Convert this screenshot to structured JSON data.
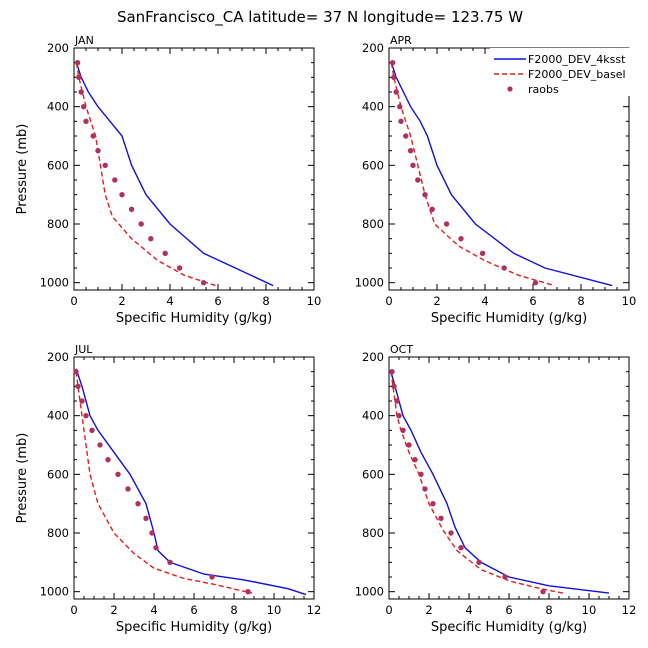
{
  "figure": {
    "title": "SanFrancisco_CA  latitude= 37 N longitude= 123.75 W"
  },
  "legend": {
    "placement": "top-right",
    "entries": [
      {
        "label": "F2000_DEV_4ksst",
        "color": "#1010e0",
        "style": "solid"
      },
      {
        "label": "F2000_DEV_basel",
        "color": "#e0201a",
        "style": "dashed"
      },
      {
        "label": "raobs",
        "color": "#b03060",
        "style": "dot"
      }
    ]
  },
  "chart_data": [
    {
      "type": "line",
      "panel": "JAN",
      "xlabel": "Specific Humidity (g/kg)",
      "ylabel": "Pressure (mb)",
      "xlim": [
        0,
        10
      ],
      "ylim": [
        1025,
        200
      ],
      "xticks": [
        0,
        2,
        4,
        6,
        8,
        10
      ],
      "yticks": [
        200,
        400,
        600,
        800,
        1000
      ],
      "series": [
        {
          "name": "F2000_DEV_4ksst",
          "points": [
            [
              0.1,
              250
            ],
            [
              0.3,
              300
            ],
            [
              0.6,
              350
            ],
            [
              1.0,
              400
            ],
            [
              1.5,
              450
            ],
            [
              2.0,
              500
            ],
            [
              2.4,
              600
            ],
            [
              3.0,
              700
            ],
            [
              4.0,
              800
            ],
            [
              5.4,
              900
            ],
            [
              8.3,
              1010
            ]
          ]
        },
        {
          "name": "F2000_DEV_basel",
          "points": [
            [
              0.1,
              250
            ],
            [
              0.2,
              300
            ],
            [
              0.35,
              350
            ],
            [
              0.5,
              400
            ],
            [
              0.7,
              450
            ],
            [
              0.9,
              500
            ],
            [
              1.1,
              600
            ],
            [
              1.3,
              700
            ],
            [
              1.6,
              775
            ],
            [
              2.4,
              850
            ],
            [
              3.5,
              925
            ],
            [
              4.6,
              975
            ],
            [
              5.9,
              1010
            ]
          ]
        },
        {
          "name": "raobs",
          "points": [
            [
              0.15,
              250
            ],
            [
              0.2,
              300
            ],
            [
              0.3,
              350
            ],
            [
              0.4,
              400
            ],
            [
              0.5,
              450
            ],
            [
              0.8,
              500
            ],
            [
              1.0,
              550
            ],
            [
              1.3,
              600
            ],
            [
              1.7,
              650
            ],
            [
              2.0,
              700
            ],
            [
              2.4,
              750
            ],
            [
              2.8,
              800
            ],
            [
              3.2,
              850
            ],
            [
              3.8,
              900
            ],
            [
              4.4,
              950
            ],
            [
              5.4,
              1000
            ]
          ]
        }
      ]
    },
    {
      "type": "line",
      "panel": "APR",
      "xlabel": "Specific Humidity (g/kg)",
      "ylabel": "",
      "xlim": [
        0,
        10
      ],
      "ylim": [
        1025,
        200
      ],
      "xticks": [
        0,
        2,
        4,
        6,
        8,
        10
      ],
      "yticks": [
        200,
        400,
        600,
        800,
        1000
      ],
      "series": [
        {
          "name": "F2000_DEV_4ksst",
          "points": [
            [
              0.1,
              250
            ],
            [
              0.3,
              300
            ],
            [
              0.6,
              350
            ],
            [
              0.9,
              400
            ],
            [
              1.3,
              450
            ],
            [
              1.6,
              500
            ],
            [
              2.0,
              600
            ],
            [
              2.6,
              700
            ],
            [
              3.6,
              800
            ],
            [
              5.2,
              900
            ],
            [
              6.5,
              950
            ],
            [
              9.3,
              1010
            ]
          ]
        },
        {
          "name": "F2000_DEV_basel",
          "points": [
            [
              0.1,
              250
            ],
            [
              0.2,
              300
            ],
            [
              0.35,
              350
            ],
            [
              0.5,
              400
            ],
            [
              0.7,
              450
            ],
            [
              0.9,
              500
            ],
            [
              1.2,
              600
            ],
            [
              1.5,
              700
            ],
            [
              1.9,
              800
            ],
            [
              2.9,
              875
            ],
            [
              4.0,
              925
            ],
            [
              5.4,
              975
            ],
            [
              6.9,
              1010
            ]
          ]
        },
        {
          "name": "raobs",
          "points": [
            [
              0.15,
              250
            ],
            [
              0.2,
              300
            ],
            [
              0.3,
              350
            ],
            [
              0.45,
              400
            ],
            [
              0.5,
              450
            ],
            [
              0.7,
              500
            ],
            [
              0.9,
              550
            ],
            [
              1.0,
              600
            ],
            [
              1.2,
              650
            ],
            [
              1.5,
              700
            ],
            [
              1.8,
              750
            ],
            [
              2.4,
              800
            ],
            [
              3.0,
              850
            ],
            [
              3.9,
              900
            ],
            [
              4.8,
              950
            ],
            [
              6.1,
              1000
            ]
          ]
        }
      ]
    },
    {
      "type": "line",
      "panel": "JUL",
      "xlabel": "Specific Humidity (g/kg)",
      "ylabel": "Pressure (mb)",
      "xlim": [
        0,
        12
      ],
      "ylim": [
        1025,
        200
      ],
      "xticks": [
        0,
        2,
        4,
        6,
        8,
        10,
        12
      ],
      "yticks": [
        200,
        400,
        600,
        800,
        1000
      ],
      "series": [
        {
          "name": "F2000_DEV_4ksst",
          "points": [
            [
              0.1,
              240
            ],
            [
              0.4,
              300
            ],
            [
              0.8,
              400
            ],
            [
              1.2,
              450
            ],
            [
              2.0,
              525
            ],
            [
              2.8,
              600
            ],
            [
              3.6,
              700
            ],
            [
              4.0,
              800
            ],
            [
              4.2,
              860
            ],
            [
              4.8,
              900
            ],
            [
              6.5,
              940
            ],
            [
              8.5,
              960
            ],
            [
              10.7,
              990
            ],
            [
              11.6,
              1010
            ]
          ]
        },
        {
          "name": "F2000_DEV_basel",
          "points": [
            [
              0.1,
              250
            ],
            [
              0.2,
              300
            ],
            [
              0.4,
              400
            ],
            [
              0.6,
              500
            ],
            [
              0.8,
              600
            ],
            [
              1.2,
              700
            ],
            [
              2.0,
              800
            ],
            [
              3.0,
              870
            ],
            [
              4.0,
              920
            ],
            [
              5.5,
              955
            ],
            [
              7.0,
              975
            ],
            [
              8.9,
              1005
            ]
          ]
        },
        {
          "name": "raobs",
          "points": [
            [
              0.1,
              250
            ],
            [
              0.2,
              300
            ],
            [
              0.4,
              350
            ],
            [
              0.6,
              400
            ],
            [
              0.9,
              450
            ],
            [
              1.3,
              500
            ],
            [
              1.7,
              550
            ],
            [
              2.2,
              600
            ],
            [
              2.7,
              650
            ],
            [
              3.2,
              700
            ],
            [
              3.6,
              750
            ],
            [
              3.9,
              800
            ],
            [
              4.1,
              850
            ],
            [
              4.8,
              900
            ],
            [
              6.9,
              950
            ],
            [
              8.7,
              1000
            ]
          ]
        }
      ]
    },
    {
      "type": "line",
      "panel": "OCT",
      "xlabel": "Specific Humidity (g/kg)",
      "ylabel": "",
      "xlim": [
        0,
        12
      ],
      "ylim": [
        1025,
        200
      ],
      "xticks": [
        0,
        2,
        4,
        6,
        8,
        10,
        12
      ],
      "yticks": [
        200,
        400,
        600,
        800,
        1000
      ],
      "series": [
        {
          "name": "F2000_DEV_4ksst",
          "points": [
            [
              0.1,
              250
            ],
            [
              0.3,
              300
            ],
            [
              0.7,
              400
            ],
            [
              1.1,
              450
            ],
            [
              1.6,
              525
            ],
            [
              2.2,
              600
            ],
            [
              2.9,
              700
            ],
            [
              3.3,
              780
            ],
            [
              3.8,
              850
            ],
            [
              4.6,
              900
            ],
            [
              6.0,
              950
            ],
            [
              8.0,
              980
            ],
            [
              11.0,
              1005
            ]
          ]
        },
        {
          "name": "F2000_DEV_basel",
          "points": [
            [
              0.1,
              250
            ],
            [
              0.2,
              300
            ],
            [
              0.4,
              400
            ],
            [
              0.6,
              450
            ],
            [
              1.0,
              525
            ],
            [
              1.5,
              600
            ],
            [
              2.0,
              700
            ],
            [
              2.7,
              790
            ],
            [
              3.4,
              860
            ],
            [
              4.6,
              925
            ],
            [
              6.1,
              965
            ],
            [
              7.6,
              990
            ],
            [
              8.7,
              1005
            ]
          ]
        },
        {
          "name": "raobs",
          "points": [
            [
              0.15,
              250
            ],
            [
              0.25,
              300
            ],
            [
              0.4,
              350
            ],
            [
              0.5,
              400
            ],
            [
              0.7,
              450
            ],
            [
              1.0,
              500
            ],
            [
              1.3,
              550
            ],
            [
              1.6,
              600
            ],
            [
              1.8,
              650
            ],
            [
              2.2,
              700
            ],
            [
              2.6,
              750
            ],
            [
              3.1,
              800
            ],
            [
              3.6,
              850
            ],
            [
              4.5,
              900
            ],
            [
              5.8,
              950
            ],
            [
              7.7,
              1000
            ]
          ]
        }
      ]
    }
  ]
}
